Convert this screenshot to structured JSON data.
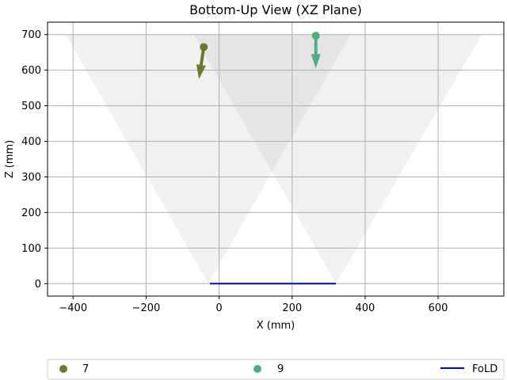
{
  "chart_data": {
    "type": "scatter",
    "title": "Bottom-Up View (XZ Plane)",
    "xlabel": "X (mm)",
    "ylabel": "Z (mm)",
    "xlim": [
      -470,
      780
    ],
    "ylim": [
      -35,
      735
    ],
    "x_ticks": [
      -400,
      -200,
      0,
      200,
      400,
      600
    ],
    "y_ticks": [
      0,
      100,
      200,
      300,
      400,
      500,
      600,
      700
    ],
    "grid": true,
    "legend_placement": "bottom",
    "fov_cones": [
      {
        "apex": [
          -30,
          0
        ],
        "top": [
          [
            -420,
            700
          ],
          [
            360,
            700
          ]
        ]
      },
      {
        "apex": [
          320,
          0
        ],
        "top": [
          [
            -70,
            700
          ],
          [
            720,
            700
          ]
        ]
      }
    ],
    "series": [
      {
        "name": "7",
        "color": "#6b7a2a",
        "x": [
          -42
        ],
        "y": [
          665
        ],
        "arrow_end": [
          -55,
          575
        ]
      },
      {
        "name": "9",
        "color": "#4fae85",
        "x": [
          265
        ],
        "y": [
          697
        ],
        "arrow_end": [
          265,
          605
        ]
      },
      {
        "name": "FoLD",
        "color": "#0000cc",
        "type": "line",
        "x": [
          -25,
          320
        ],
        "y": [
          0,
          0
        ]
      }
    ]
  }
}
